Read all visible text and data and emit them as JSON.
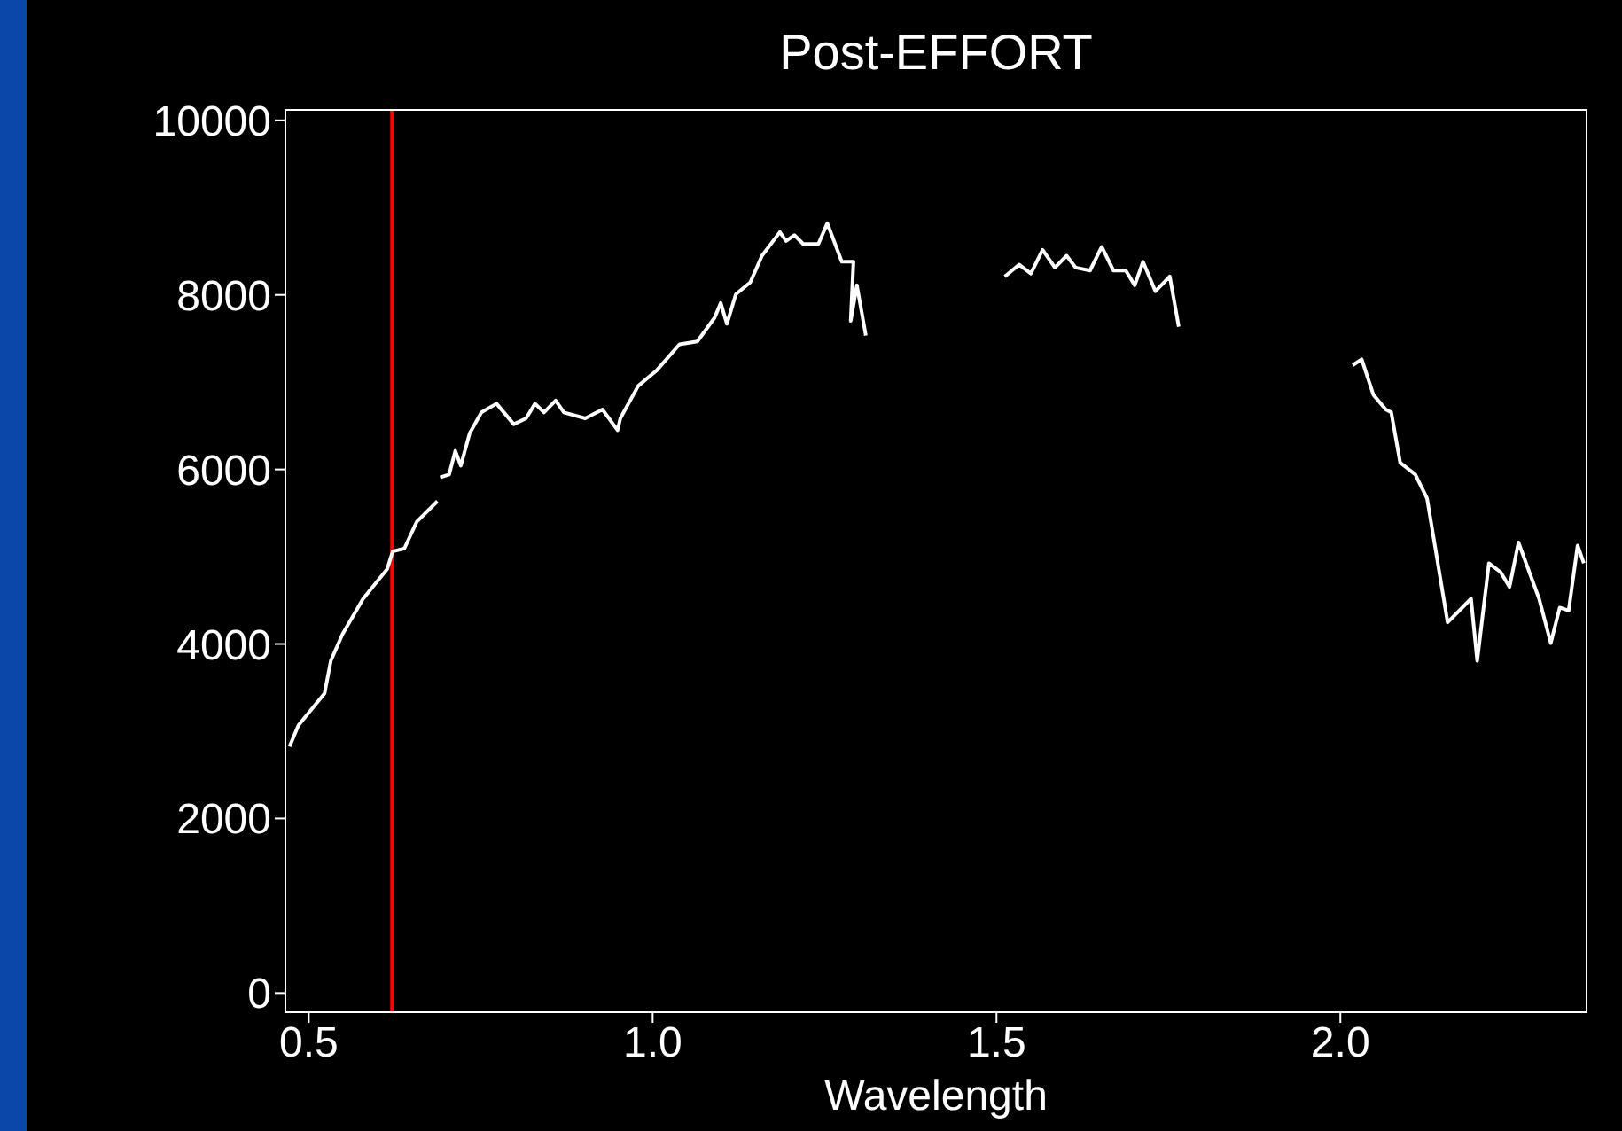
{
  "chart_data": {
    "type": "line",
    "title": "Post-EFFORT",
    "xlabel": "Wavelength",
    "xlim": [
      0.466,
      2.358
    ],
    "ylim": [
      -220,
      10120
    ],
    "xticks": [
      {
        "value": 0.5,
        "label": "0.5"
      },
      {
        "value": 1.0,
        "label": "1.0"
      },
      {
        "value": 1.5,
        "label": "1.5"
      },
      {
        "value": 2.0,
        "label": "2.0"
      }
    ],
    "yticks": [
      0,
      2000,
      4000,
      6000,
      8000,
      10000
    ],
    "series": [
      {
        "color": "#ffffff",
        "x": [
          0.472,
          0.485,
          0.523,
          0.532,
          0.549,
          0.579,
          0.614,
          0.622,
          0.639,
          0.657,
          0.687,
          0.689,
          0.691,
          0.704,
          0.713,
          0.721,
          0.734,
          0.751,
          0.773,
          0.798,
          0.816,
          0.829,
          0.842,
          0.859,
          0.871,
          0.902,
          0.927,
          0.949,
          0.953,
          0.979,
          1.005,
          1.039,
          1.065,
          1.09,
          1.099,
          1.108,
          1.121,
          1.142,
          1.159,
          1.185,
          1.194,
          1.206,
          1.219,
          1.241,
          1.254,
          1.275,
          1.292,
          1.288,
          1.297,
          1.31,
          1.4,
          1.512,
          1.533,
          1.55,
          1.567,
          1.585,
          1.602,
          1.615,
          1.636,
          1.653,
          1.67,
          1.688,
          1.701,
          1.713,
          1.731,
          1.752,
          1.765,
          1.9,
          2.018,
          2.031,
          2.048,
          2.066,
          2.074,
          2.087,
          2.109,
          2.126,
          2.156,
          2.19,
          2.199,
          2.216,
          2.233,
          2.246,
          2.259,
          2.289,
          2.306,
          2.319,
          2.332,
          2.345,
          2.354
        ],
        "values": [
          2825,
          3069,
          3435,
          3807,
          4112,
          4518,
          4858,
          5061,
          5095,
          5400,
          5636,
          null,
          5908,
          5941,
          6213,
          6043,
          6416,
          6653,
          6754,
          6518,
          6585,
          6754,
          6653,
          6789,
          6653,
          6585,
          6687,
          6449,
          6585,
          6957,
          7128,
          7433,
          7466,
          7738,
          7907,
          7669,
          8008,
          8144,
          8449,
          8720,
          8618,
          8685,
          8584,
          8584,
          8821,
          8380,
          8380,
          7703,
          8110,
          7534,
          null,
          8211,
          8347,
          8245,
          8516,
          8313,
          8449,
          8313,
          8279,
          8551,
          8279,
          8279,
          8110,
          8380,
          8042,
          8211,
          7636,
          null,
          7195,
          7262,
          6856,
          6687,
          6653,
          6077,
          5941,
          5671,
          4248,
          4518,
          3807,
          4925,
          4823,
          4654,
          5163,
          4518,
          4010,
          4417,
          4383,
          5128,
          4925
        ]
      }
    ],
    "ref_lines": [
      {
        "axis": "x",
        "value": 0.621,
        "color": "#ff0000"
      }
    ]
  }
}
